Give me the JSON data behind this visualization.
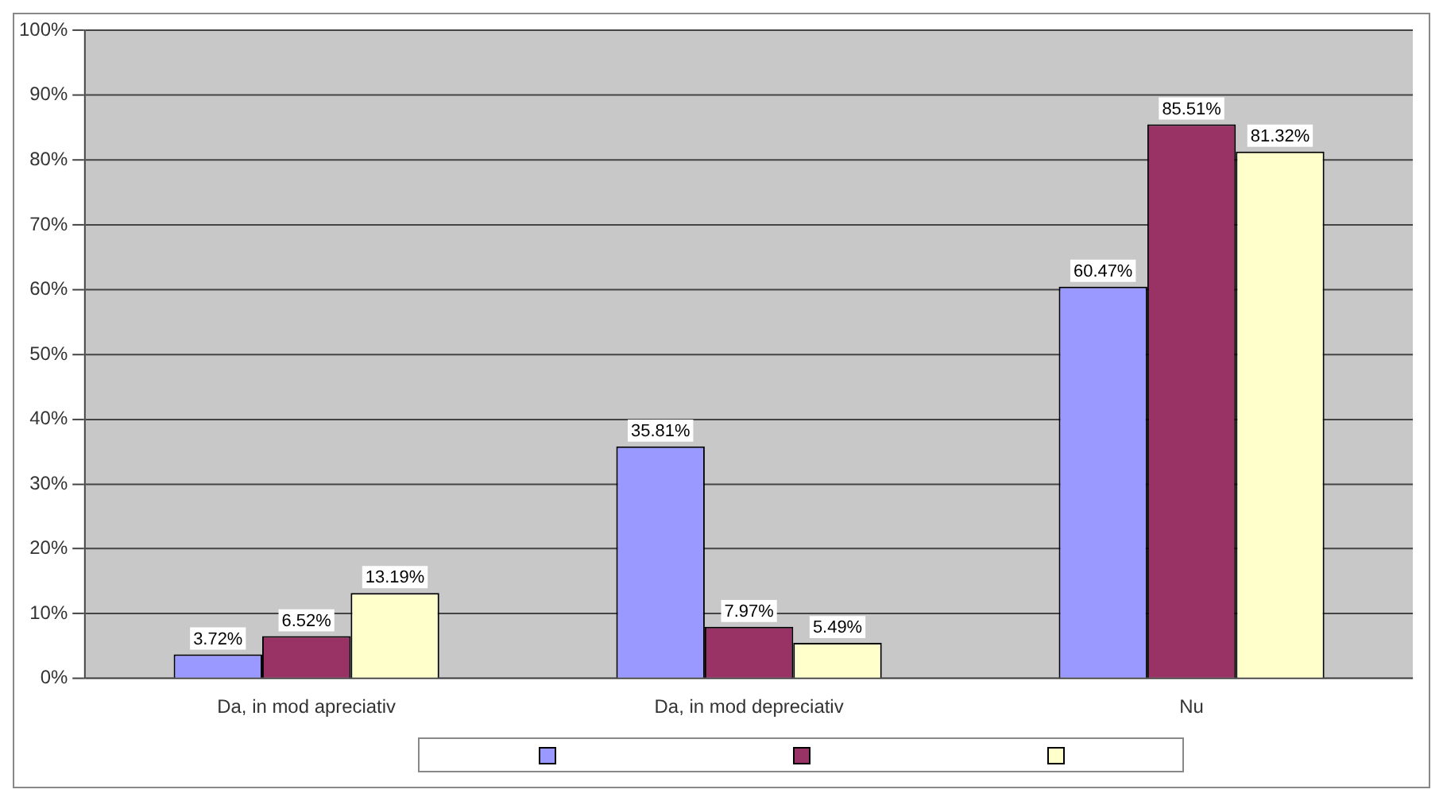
{
  "chart_data": {
    "type": "bar",
    "categories": [
      "Da, in mod apreciativ",
      "Da, in mod depreciativ",
      "Nu"
    ],
    "series": [
      {
        "color": "#9999ff",
        "values": [
          3.72,
          35.81,
          60.47
        ],
        "value_labels": [
          "3.72%",
          "35.81%",
          "60.47%"
        ]
      },
      {
        "color": "#993366",
        "values": [
          6.52,
          7.97,
          85.51
        ],
        "value_labels": [
          "6.52%",
          "7.97%",
          "85.51%"
        ]
      },
      {
        "color": "#ffffcc",
        "values": [
          13.19,
          5.49,
          81.32
        ],
        "value_labels": [
          "13.19%",
          "5.49%",
          "81.32%"
        ]
      }
    ],
    "ylim": [
      0,
      100
    ],
    "yticks": [
      {
        "value": 0,
        "label": "0%"
      },
      {
        "value": 10,
        "label": "10%"
      },
      {
        "value": 20,
        "label": "20%"
      },
      {
        "value": 30,
        "label": "30%"
      },
      {
        "value": 40,
        "label": "40%"
      },
      {
        "value": 50,
        "label": "50%"
      },
      {
        "value": 60,
        "label": "60%"
      },
      {
        "value": 70,
        "label": "70%"
      },
      {
        "value": 80,
        "label": "80%"
      },
      {
        "value": 90,
        "label": "90%"
      },
      {
        "value": 100,
        "label": "100%"
      }
    ],
    "grid": "y"
  }
}
